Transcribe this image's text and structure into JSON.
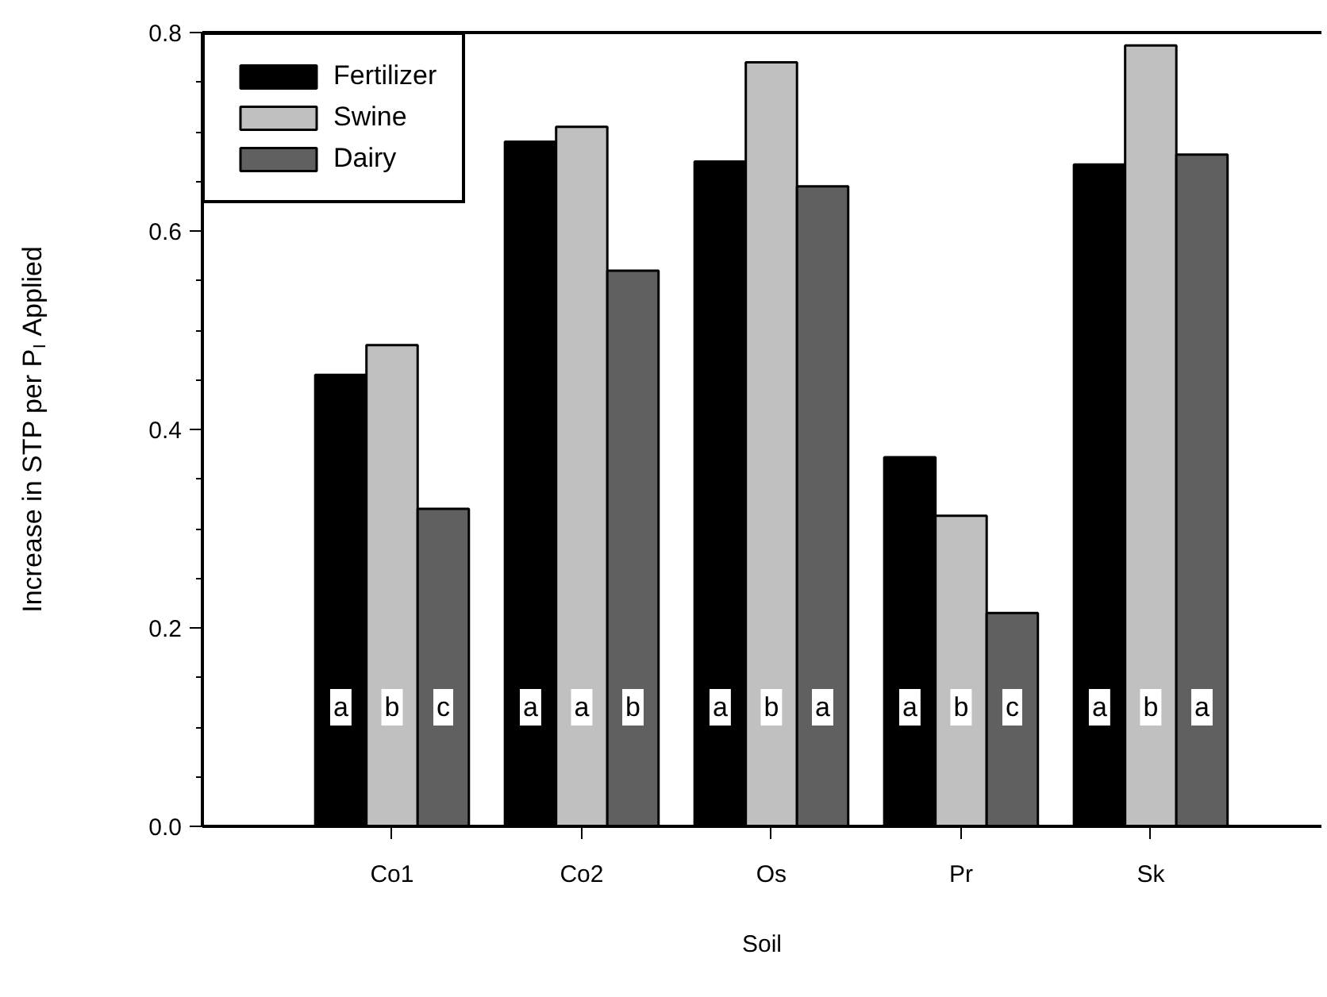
{
  "chart_data": {
    "type": "bar",
    "xlabel": "Soil",
    "ylabel": "Increase in STP per P$_{I}$ Applied",
    "categories": [
      "Co1",
      "Co2",
      "Os",
      "Pr",
      "Sk"
    ],
    "series": [
      {
        "name": "Fertilizer",
        "color": "#000000",
        "values": [
          0.455,
          0.69,
          0.67,
          0.372,
          0.667
        ]
      },
      {
        "name": "Swine",
        "color": "#c0c0c0",
        "values": [
          0.485,
          0.705,
          0.77,
          0.313,
          0.787
        ]
      },
      {
        "name": "Dairy",
        "color": "#606060",
        "values": [
          0.32,
          0.56,
          0.645,
          0.215,
          0.677
        ]
      }
    ],
    "ylim": [
      0,
      0.8
    ],
    "yticks": [
      {
        "value": 0,
        "label": "0.0"
      },
      {
        "value": 0.2,
        "label": "0.2"
      },
      {
        "value": 0.4,
        "label": "0.4"
      },
      {
        "value": 0.6,
        "label": "0.6"
      },
      {
        "value": 0.8,
        "label": "0.8"
      }
    ],
    "annotations": [
      "a",
      "b",
      "c",
      "a",
      "a",
      "b",
      "a",
      "b",
      "a",
      "a",
      "b",
      "c",
      "a",
      "b",
      "a"
    ],
    "legend": "top left",
    "grid": false
  }
}
